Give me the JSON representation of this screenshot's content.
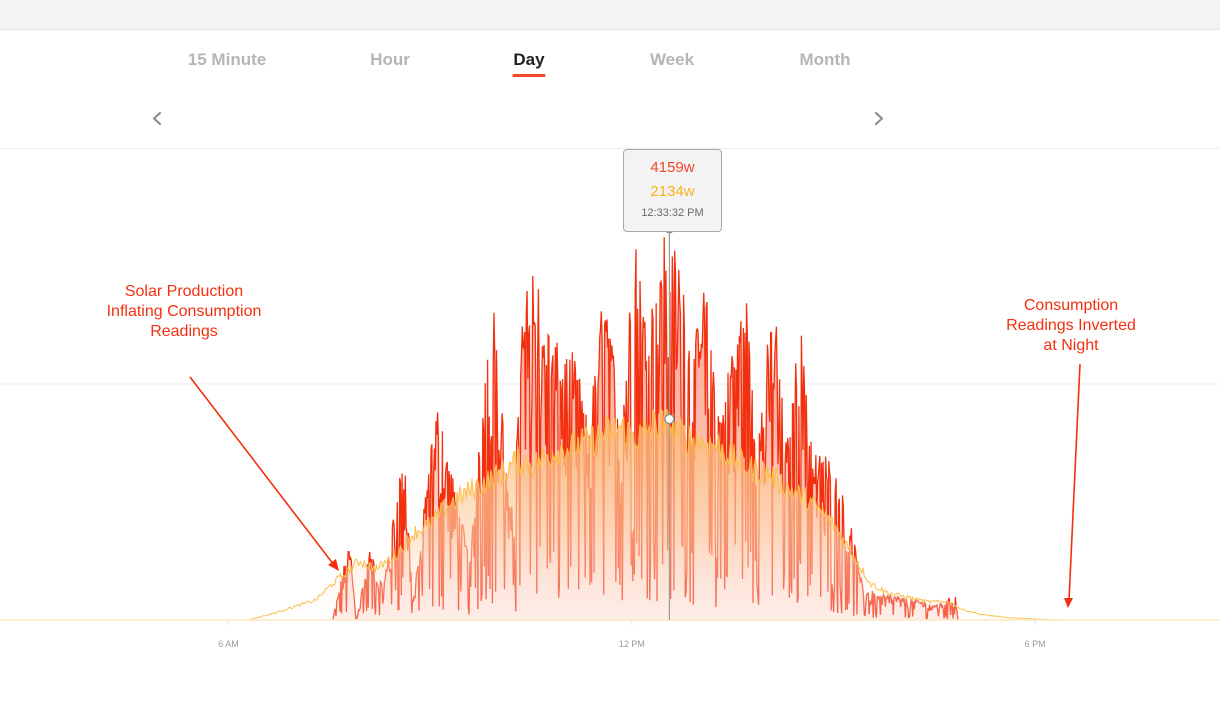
{
  "tabs": [
    {
      "label": "15 Minute",
      "active": false
    },
    {
      "label": "Hour",
      "active": false
    },
    {
      "label": "Day",
      "active": true
    },
    {
      "label": "Week",
      "active": false
    },
    {
      "label": "Month",
      "active": false
    }
  ],
  "nav": {
    "prev_icon": "chevron-left-icon",
    "next_icon": "chevron-right-icon"
  },
  "tooltip": {
    "value1": "4159w",
    "value2": "2134w",
    "time": "12:33:32 PM"
  },
  "annotations": {
    "left": [
      "Solar Production",
      "Inflating Consumption",
      "Readings"
    ],
    "right": [
      "Consumption",
      "Readings Inverted",
      "at Night"
    ]
  },
  "chart_data": {
    "type": "area",
    "x_ticks": [
      "6 AM",
      "12 PM",
      "6 PM"
    ],
    "x_tick_hours": [
      6,
      12,
      18
    ],
    "xlim_hours": [
      2.6,
      20.75
    ],
    "ylim_w": [
      0,
      5000
    ],
    "gridlines_w": [
      2500,
      5000
    ],
    "colors": {
      "consumption": "#f2300f",
      "production": "#fbbf4a",
      "accent": "#f2472a"
    },
    "hover_hour": 12.559,
    "series": [
      {
        "key": "consumption",
        "values_w": [
          [
            7.55,
            0
          ],
          [
            7.8,
            800
          ],
          [
            7.9,
            0
          ],
          [
            8.1,
            700
          ],
          [
            8.3,
            300
          ],
          [
            8.6,
            1700
          ],
          [
            8.75,
            200
          ],
          [
            9.0,
            1600
          ],
          [
            9.1,
            2100
          ],
          [
            9.3,
            1500
          ],
          [
            9.6,
            600
          ],
          [
            9.8,
            2500
          ],
          [
            9.95,
            3000
          ],
          [
            10.2,
            1000
          ],
          [
            10.4,
            3200
          ],
          [
            10.55,
            3500
          ],
          [
            10.7,
            2900
          ],
          [
            10.95,
            2600
          ],
          [
            11.15,
            2600
          ],
          [
            11.35,
            1900
          ],
          [
            11.6,
            3300
          ],
          [
            11.85,
            1900
          ],
          [
            12.05,
            3800
          ],
          [
            12.2,
            2900
          ],
          [
            12.35,
            3500
          ],
          [
            12.5,
            3800
          ],
          [
            12.7,
            3500
          ],
          [
            12.9,
            2600
          ],
          [
            13.1,
            3300
          ],
          [
            13.3,
            2000
          ],
          [
            13.5,
            2700
          ],
          [
            13.7,
            3200
          ],
          [
            13.9,
            1800
          ],
          [
            14.1,
            3300
          ],
          [
            14.3,
            1700
          ],
          [
            14.5,
            3000
          ],
          [
            14.7,
            1600
          ],
          [
            14.95,
            1600
          ],
          [
            15.2,
            1100
          ],
          [
            15.45,
            300
          ],
          [
            15.8,
            250
          ],
          [
            16.2,
            200
          ],
          [
            16.5,
            150
          ],
          [
            16.82,
            250
          ],
          [
            16.85,
            0
          ]
        ]
      },
      {
        "key": "production",
        "values_w": [
          [
            5.7,
            0
          ],
          [
            6.3,
            0
          ],
          [
            6.7,
            80
          ],
          [
            7.0,
            150
          ],
          [
            7.3,
            220
          ],
          [
            7.55,
            400
          ],
          [
            7.75,
            520
          ],
          [
            7.95,
            650
          ],
          [
            8.2,
            560
          ],
          [
            8.5,
            720
          ],
          [
            8.75,
            950
          ],
          [
            9.0,
            1050
          ],
          [
            9.25,
            1250
          ],
          [
            9.55,
            1400
          ],
          [
            9.8,
            1500
          ],
          [
            10.05,
            1600
          ],
          [
            10.3,
            1750
          ],
          [
            10.55,
            1700
          ],
          [
            10.85,
            1850
          ],
          [
            11.1,
            1900
          ],
          [
            11.35,
            1950
          ],
          [
            11.6,
            2050
          ],
          [
            11.85,
            2100
          ],
          [
            12.1,
            2000
          ],
          [
            12.35,
            2150
          ],
          [
            12.56,
            2134
          ],
          [
            12.8,
            2000
          ],
          [
            13.05,
            1950
          ],
          [
            13.3,
            1900
          ],
          [
            13.55,
            1750
          ],
          [
            13.8,
            1650
          ],
          [
            14.05,
            1600
          ],
          [
            14.3,
            1450
          ],
          [
            14.55,
            1350
          ],
          [
            14.8,
            1200
          ],
          [
            15.05,
            1000
          ],
          [
            15.3,
            700
          ],
          [
            15.55,
            400
          ],
          [
            15.8,
            300
          ],
          [
            16.1,
            250
          ],
          [
            16.4,
            200
          ],
          [
            16.7,
            200
          ],
          [
            16.9,
            120
          ],
          [
            17.2,
            60
          ],
          [
            17.6,
            25
          ],
          [
            18.0,
            10
          ],
          [
            18.4,
            0
          ]
        ]
      }
    ]
  }
}
